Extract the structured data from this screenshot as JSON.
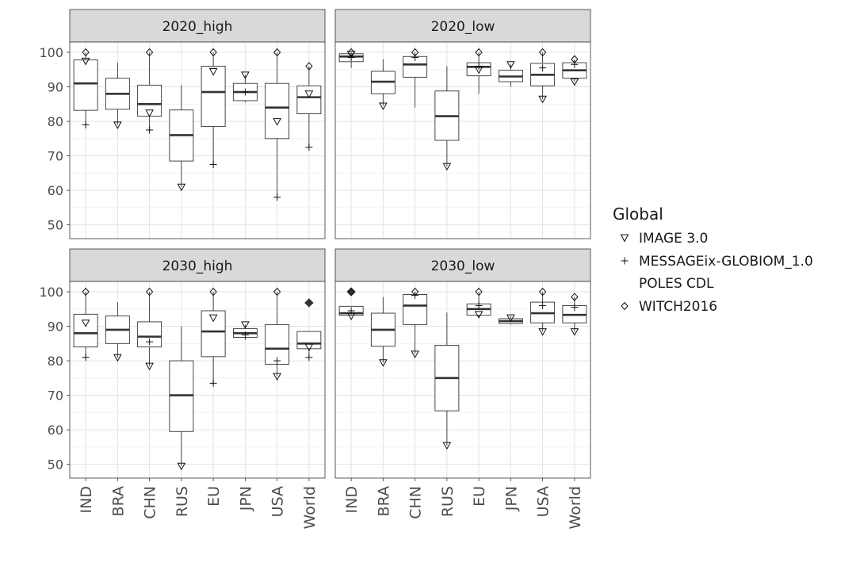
{
  "chart_data": {
    "type": "box",
    "ylim": [
      46,
      103
    ],
    "yticks": [
      50,
      60,
      70,
      80,
      90,
      100
    ],
    "grid": true,
    "categories": [
      "IND",
      "BRA",
      "CHN",
      "RUS",
      "EU",
      "JPN",
      "USA",
      "World"
    ],
    "legend": {
      "position": "right",
      "title": "Global",
      "entries": [
        {
          "label": "IMAGE 3.0",
          "symbol": "triangle-down"
        },
        {
          "label": "MESSAGEix-GLOBIOM_1.0",
          "symbol": "plus"
        },
        {
          "label": "POLES CDL",
          "symbol": "none"
        },
        {
          "label": "WITCH2016",
          "symbol": "diamond"
        }
      ]
    },
    "panels": [
      {
        "title": "2020_high",
        "boxes": [
          {
            "category": "IND",
            "min": 79,
            "q1": 83.2,
            "median": 91,
            "q3": 97.8,
            "max": 100,
            "outliers": []
          },
          {
            "category": "BRA",
            "min": 79,
            "q1": 83.5,
            "median": 88,
            "q3": 92.5,
            "max": 97,
            "outliers": []
          },
          {
            "category": "CHN",
            "min": 77.5,
            "q1": 81.5,
            "median": 85,
            "q3": 90.5,
            "max": 100,
            "outliers": []
          },
          {
            "category": "RUS",
            "min": 61,
            "q1": 68.5,
            "median": 76,
            "q3": 83.3,
            "max": 90.5,
            "outliers": []
          },
          {
            "category": "EU",
            "min": 67.5,
            "q1": 78.5,
            "median": 88.5,
            "q3": 96,
            "max": 100,
            "outliers": []
          },
          {
            "category": "JPN",
            "min": 85.5,
            "q1": 86,
            "median": 88.5,
            "q3": 91,
            "max": 93.5,
            "outliers": []
          },
          {
            "category": "USA",
            "min": 58,
            "q1": 75,
            "median": 84,
            "q3": 91,
            "max": 100,
            "outliers": []
          },
          {
            "category": "World",
            "min": 72.5,
            "q1": 82.2,
            "median": 87,
            "q3": 90.3,
            "max": 96,
            "outliers": []
          }
        ],
        "markers": {
          "IMAGE 3.0": [
            97.5,
            79,
            82.5,
            61,
            94.5,
            93.5,
            80,
            88
          ],
          "MESSAGEix-GLOBIOM_1.0": [
            79,
            null,
            77.5,
            null,
            67.5,
            88.5,
            58,
            72.5
          ],
          "WITCH2016": [
            100,
            null,
            100,
            null,
            100,
            null,
            100,
            96
          ]
        }
      },
      {
        "title": "2020_low",
        "boxes": [
          {
            "category": "IND",
            "min": 95.5,
            "q1": 97.3,
            "median": 98.8,
            "q3": 99.6,
            "max": 100,
            "outliers": []
          },
          {
            "category": "BRA",
            "min": 84.5,
            "q1": 88,
            "median": 91.5,
            "q3": 94.5,
            "max": 98,
            "outliers": []
          },
          {
            "category": "CHN",
            "min": 84,
            "q1": 92.8,
            "median": 96.5,
            "q3": 98.8,
            "max": 100,
            "outliers": []
          },
          {
            "category": "RUS",
            "min": 67,
            "q1": 74.5,
            "median": 81.5,
            "q3": 88.8,
            "max": 96,
            "outliers": []
          },
          {
            "category": "EU",
            "min": 88,
            "q1": 93.2,
            "median": 95.8,
            "q3": 97,
            "max": 100,
            "outliers": []
          },
          {
            "category": "JPN",
            "min": 90,
            "q1": 91.5,
            "median": 93,
            "q3": 94.8,
            "max": 96.5,
            "outliers": []
          },
          {
            "category": "USA",
            "min": 86.5,
            "q1": 90.3,
            "median": 93.5,
            "q3": 96.8,
            "max": 100,
            "outliers": []
          },
          {
            "category": "World",
            "min": 91.5,
            "q1": 92.5,
            "median": 94.8,
            "q3": 97,
            "max": 98,
            "outliers": []
          }
        ],
        "markers": {
          "IMAGE 3.0": [
            99.5,
            84.5,
            null,
            67,
            95,
            96.5,
            86.5,
            91.5
          ],
          "MESSAGEix-GLOBIOM_1.0": [
            98.5,
            null,
            98.5,
            null,
            96,
            null,
            95.5,
            96.5
          ],
          "WITCH2016": [
            100,
            null,
            100,
            null,
            100,
            null,
            100,
            98
          ]
        }
      },
      {
        "title": "2030_high",
        "boxes": [
          {
            "category": "IND",
            "min": 81,
            "q1": 84,
            "median": 88,
            "q3": 93.5,
            "max": 100,
            "outliers": []
          },
          {
            "category": "BRA",
            "min": 81,
            "q1": 85,
            "median": 89,
            "q3": 93,
            "max": 97,
            "outliers": []
          },
          {
            "category": "CHN",
            "min": 78.5,
            "q1": 84,
            "median": 87,
            "q3": 91.3,
            "max": 100,
            "outliers": []
          },
          {
            "category": "RUS",
            "min": 49.5,
            "q1": 59.5,
            "median": 70,
            "q3": 80,
            "max": 90,
            "outliers": []
          },
          {
            "category": "EU",
            "min": 73.5,
            "q1": 81.2,
            "median": 88.5,
            "q3": 94.5,
            "max": 100,
            "outliers": []
          },
          {
            "category": "JPN",
            "min": 86,
            "q1": 86.8,
            "median": 88,
            "q3": 89.3,
            "max": 90.5,
            "outliers": []
          },
          {
            "category": "USA",
            "min": 75.5,
            "q1": 79,
            "median": 83.5,
            "q3": 90.5,
            "max": 100,
            "outliers": []
          },
          {
            "category": "World",
            "min": 81,
            "q1": 83.5,
            "median": 85,
            "q3": 88.5,
            "max": 88.5,
            "outliers": [
              96.8
            ]
          }
        ],
        "markers": {
          "IMAGE 3.0": [
            91,
            81,
            78.5,
            49.5,
            92.5,
            90.5,
            75.5,
            84
          ],
          "MESSAGEix-GLOBIOM_1.0": [
            81,
            null,
            85.5,
            null,
            73.5,
            87.5,
            80,
            81
          ],
          "WITCH2016": [
            100,
            null,
            100,
            null,
            100,
            null,
            100,
            null
          ]
        }
      },
      {
        "title": "2030_low",
        "boxes": [
          {
            "category": "IND",
            "min": 93,
            "q1": 93.2,
            "median": 93.8,
            "q3": 95.8,
            "max": 95.8,
            "outliers": [
              100
            ]
          },
          {
            "category": "BRA",
            "min": 79.5,
            "q1": 84.2,
            "median": 89,
            "q3": 93.8,
            "max": 98.5,
            "outliers": []
          },
          {
            "category": "CHN",
            "min": 82,
            "q1": 90.5,
            "median": 96,
            "q3": 99.2,
            "max": 100,
            "outliers": []
          },
          {
            "category": "RUS",
            "min": 55.5,
            "q1": 65.5,
            "median": 75,
            "q3": 84.5,
            "max": 94,
            "outliers": []
          },
          {
            "category": "EU",
            "min": 92.5,
            "q1": 93.2,
            "median": 95,
            "q3": 96.5,
            "max": 100,
            "outliers": []
          },
          {
            "category": "JPN",
            "min": 90.5,
            "q1": 90.8,
            "median": 91.5,
            "q3": 92.2,
            "max": 93,
            "outliers": []
          },
          {
            "category": "USA",
            "min": 88.5,
            "q1": 91,
            "median": 93.8,
            "q3": 97,
            "max": 100,
            "outliers": []
          },
          {
            "category": "World",
            "min": 88.5,
            "q1": 91,
            "median": 93.3,
            "q3": 96,
            "max": 98.5,
            "outliers": []
          }
        ],
        "markers": {
          "IMAGE 3.0": [
            93,
            79.5,
            82,
            55.5,
            93.5,
            92.5,
            88.5,
            88.5
          ],
          "MESSAGEix-GLOBIOM_1.0": [
            94.5,
            null,
            99,
            null,
            96,
            null,
            96,
            95.5
          ],
          "WITCH2016": [
            100,
            null,
            100,
            null,
            100,
            null,
            100,
            98.5
          ]
        }
      }
    ]
  }
}
